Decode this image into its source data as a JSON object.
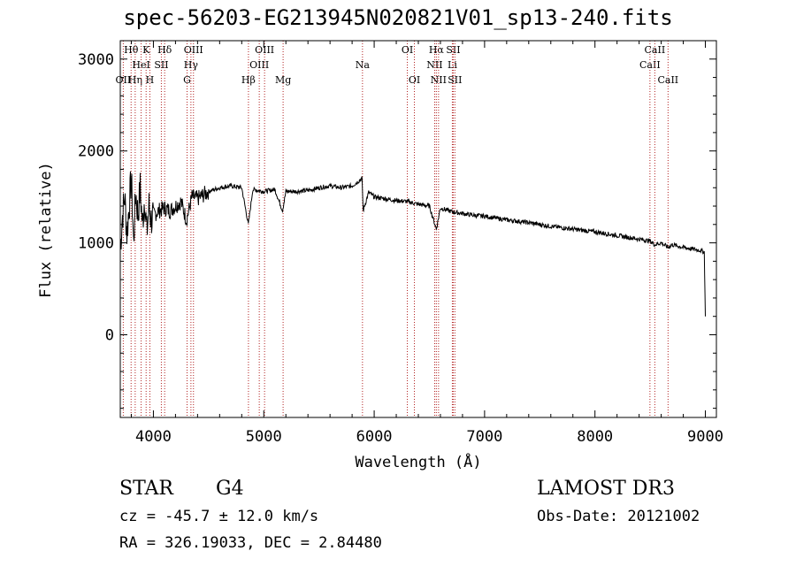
{
  "chart_data": {
    "type": "line",
    "title": "spec-56203-EG213945N020821V01_sp13-240.fits",
    "xlabel": "Wavelength (Å)",
    "ylabel": "Flux (relative)",
    "xlim": [
      3700,
      9100
    ],
    "ylim": [
      -900,
      3200
    ],
    "xticks": [
      4000,
      5000,
      6000,
      7000,
      8000,
      9000
    ],
    "xtick_labels": [
      "4000",
      "5000",
      "6000",
      "7000",
      "8000",
      "9000"
    ],
    "yticks": [
      0,
      1000,
      2000,
      3000
    ],
    "ytick_labels": [
      "0",
      "1000",
      "2000",
      "3000"
    ],
    "series": [
      {
        "name": "flux",
        "x": [
          3700,
          3720,
          3740,
          3760,
          3780,
          3800,
          3820,
          3840,
          3860,
          3880,
          3900,
          3920,
          3940,
          3960,
          3980,
          4000,
          4050,
          4100,
          4150,
          4200,
          4250,
          4300,
          4350,
          4400,
          4500,
          4600,
          4700,
          4800,
          4860,
          4900,
          5000,
          5100,
          5170,
          5200,
          5300,
          5400,
          5500,
          5600,
          5700,
          5800,
          5890,
          5900,
          5950,
          6000,
          6100,
          6200,
          6300,
          6400,
          6500,
          6563,
          6600,
          6700,
          6800,
          6900,
          7000,
          7200,
          7400,
          7600,
          7800,
          8000,
          8200,
          8400,
          8498,
          8542,
          8600,
          8662,
          8700,
          8800,
          8900,
          8950,
          8990,
          9000
        ],
        "y": [
          950,
          1300,
          1500,
          1100,
          1400,
          1700,
          1000,
          1550,
          1300,
          1600,
          1200,
          1500,
          1100,
          1400,
          1250,
          1300,
          1350,
          1380,
          1350,
          1400,
          1450,
          1250,
          1500,
          1480,
          1560,
          1600,
          1620,
          1600,
          1200,
          1580,
          1560,
          1580,
          1350,
          1560,
          1560,
          1570,
          1600,
          1620,
          1600,
          1620,
          1700,
          1350,
          1550,
          1500,
          1480,
          1460,
          1450,
          1420,
          1400,
          1150,
          1380,
          1340,
          1320,
          1300,
          1290,
          1250,
          1220,
          1180,
          1150,
          1120,
          1080,
          1040,
          1020,
          980,
          1000,
          950,
          980,
          950,
          930,
          920,
          900,
          200
        ]
      }
    ],
    "lines": [
      {
        "label": "OII",
        "wavelength": 3727,
        "row": 2
      },
      {
        "label": "Hθ",
        "wavelength": 3798,
        "row": 0
      },
      {
        "label": "Hη",
        "wavelength": 3835,
        "row": 2
      },
      {
        "label": "HeI",
        "wavelength": 3889,
        "row": 1
      },
      {
        "label": "K",
        "wavelength": 3934,
        "row": 0
      },
      {
        "label": "H",
        "wavelength": 3968,
        "row": 2
      },
      {
        "label": "SII",
        "wavelength": 4072,
        "row": 1
      },
      {
        "label": "Hδ",
        "wavelength": 4102,
        "row": 0
      },
      {
        "label": "G",
        "wavelength": 4305,
        "row": 2
      },
      {
        "label": "Hγ",
        "wavelength": 4340,
        "row": 1
      },
      {
        "label": "OIII",
        "wavelength": 4363,
        "row": 0
      },
      {
        "label": "Hβ",
        "wavelength": 4861,
        "row": 2
      },
      {
        "label": "OIII",
        "wavelength": 4959,
        "row": 1
      },
      {
        "label": "OIII",
        "wavelength": 5007,
        "row": 0
      },
      {
        "label": "Mg",
        "wavelength": 5175,
        "row": 2
      },
      {
        "label": "Na",
        "wavelength": 5894,
        "row": 1
      },
      {
        "label": "OI",
        "wavelength": 6300,
        "row": 0
      },
      {
        "label": "OI",
        "wavelength": 6364,
        "row": 2
      },
      {
        "label": "NII",
        "wavelength": 6548,
        "row": 1
      },
      {
        "label": "Hα",
        "wavelength": 6563,
        "row": 0
      },
      {
        "label": "NII",
        "wavelength": 6583,
        "row": 2
      },
      {
        "label": "Li",
        "wavelength": 6708,
        "row": 1
      },
      {
        "label": "SII",
        "wavelength": 6716,
        "row": 0
      },
      {
        "label": "SII",
        "wavelength": 6731,
        "row": 2
      },
      {
        "label": "CaII",
        "wavelength": 8498,
        "row": 1
      },
      {
        "label": "CaII",
        "wavelength": 8542,
        "row": 0
      },
      {
        "label": "CaII",
        "wavelength": 8662,
        "row": 2
      }
    ]
  },
  "info": {
    "class": "STAR",
    "subclass": "G4",
    "survey": "LAMOST DR3",
    "cz": "cz = -45.7 ± 12.0 km/s",
    "obs_date": "Obs-Date: 20121002",
    "radec": "RA = 326.19033, DEC =    2.84480"
  },
  "colors": {
    "line_marker": "#b22222",
    "spectrum": "#000000"
  }
}
